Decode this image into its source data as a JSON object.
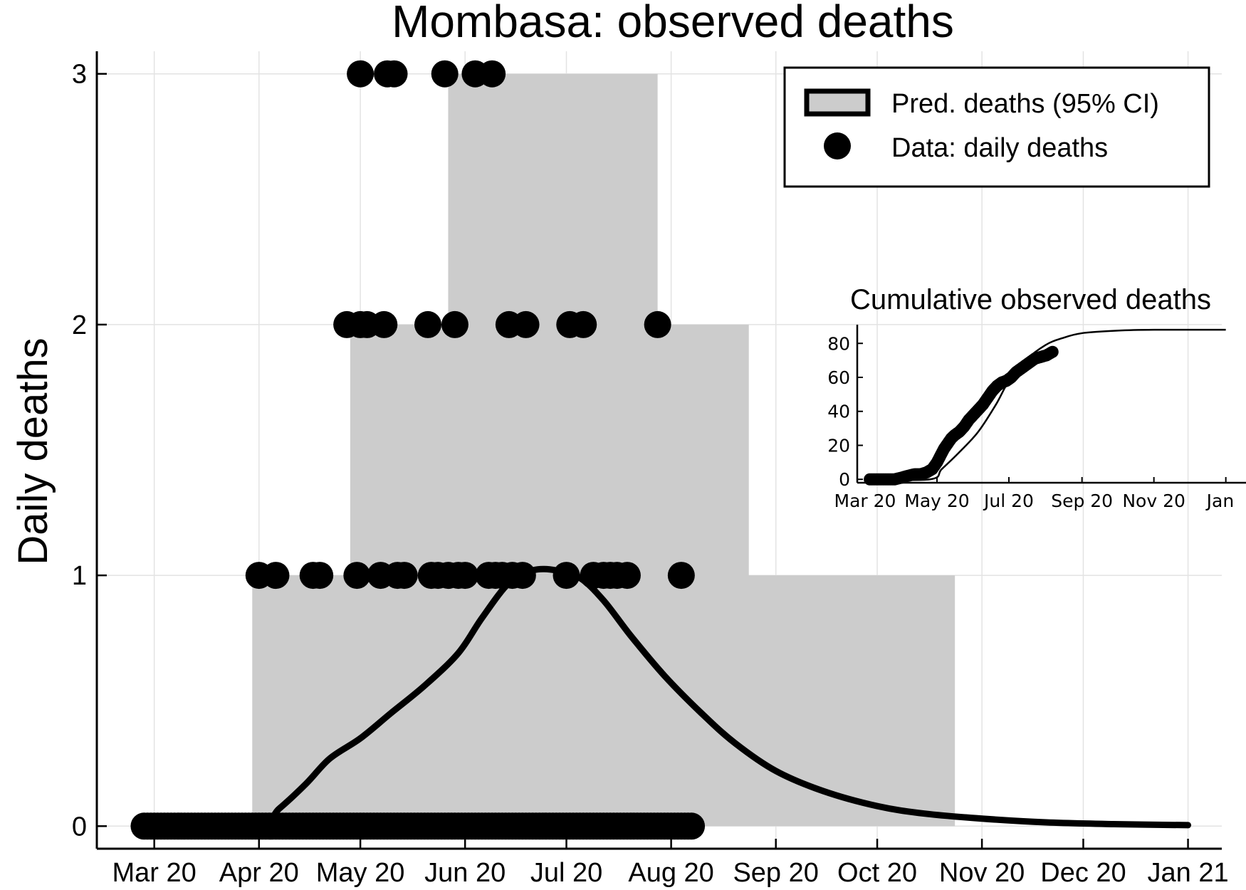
{
  "chart_data": [
    {
      "type": "area",
      "title": "Mombasa: observed deaths",
      "xlabel": "",
      "ylabel": "Daily deaths",
      "x_ticks": [
        "Mar 20",
        "Apr 20",
        "May 20",
        "Jun 20",
        "Jul 20",
        "Aug 20",
        "Sep 20",
        "Oct 20",
        "Nov 20",
        "Dec 20",
        "Jan 21"
      ],
      "x_tick_dates": [
        "2020-03-01",
        "2020-04-01",
        "2020-05-01",
        "2020-06-01",
        "2020-07-01",
        "2020-08-01",
        "2020-09-01",
        "2020-10-01",
        "2020-11-01",
        "2020-12-01",
        "2021-01-01"
      ],
      "y_ticks": [
        "0",
        "1",
        "2",
        "3"
      ],
      "xlim": [
        "2020-02-13",
        "2021-01-11"
      ],
      "ylim": [
        -0.09,
        3.09
      ],
      "grid": true,
      "legend": {
        "position": "top-right",
        "entries": [
          {
            "label": "Pred. deaths (95% CI)",
            "kind": "band"
          },
          {
            "label": "Data: daily deaths",
            "kind": "marker"
          }
        ]
      },
      "colors": {
        "band": "#cccccc",
        "line": "#000000",
        "markers": "#000000"
      },
      "series": [
        {
          "name": "Pred. deaths (95% CI)",
          "kind": "band_step",
          "x": [
            "2020-03-30",
            "2020-04-28",
            "2020-05-27",
            "2020-07-28",
            "2020-08-24",
            "2020-10-24"
          ],
          "upper": [
            1,
            2,
            3,
            2,
            1,
            0
          ],
          "lower": [
            0,
            0,
            0,
            0,
            0,
            0
          ]
        },
        {
          "name": "median prediction",
          "kind": "line",
          "x": [
            "2020-03-01",
            "2020-03-31",
            "2020-04-07",
            "2020-04-15",
            "2020-04-22",
            "2020-05-01",
            "2020-05-10",
            "2020-05-20",
            "2020-05-30",
            "2020-06-06",
            "2020-06-14",
            "2020-06-21",
            "2020-06-28",
            "2020-07-05",
            "2020-07-12",
            "2020-07-20",
            "2020-07-30",
            "2020-08-10",
            "2020-08-20",
            "2020-09-01",
            "2020-09-15",
            "2020-10-01",
            "2020-10-15",
            "2020-11-01",
            "2020-11-20",
            "2020-12-10",
            "2021-01-01"
          ],
          "y": [
            0,
            0,
            0.07,
            0.17,
            0.27,
            0.35,
            0.45,
            0.56,
            0.69,
            0.83,
            0.97,
            1.02,
            1.02,
            0.99,
            0.9,
            0.76,
            0.6,
            0.45,
            0.33,
            0.22,
            0.14,
            0.08,
            0.05,
            0.03,
            0.015,
            0.008,
            0.004
          ]
        },
        {
          "name": "Data: daily deaths",
          "kind": "scatter",
          "points": [
            [
              "2020-04-01",
              1
            ],
            [
              "2020-04-06",
              1
            ],
            [
              "2020-04-17",
              1
            ],
            [
              "2020-04-19",
              1
            ],
            [
              "2020-04-30",
              1
            ],
            [
              "2020-05-07",
              1
            ],
            [
              "2020-05-12",
              1
            ],
            [
              "2020-05-14",
              1
            ],
            [
              "2020-05-22",
              1
            ],
            [
              "2020-05-24",
              1
            ],
            [
              "2020-05-27",
              1
            ],
            [
              "2020-05-30",
              1
            ],
            [
              "2020-06-01",
              1
            ],
            [
              "2020-06-08",
              1
            ],
            [
              "2020-06-10",
              1
            ],
            [
              "2020-06-12",
              1
            ],
            [
              "2020-06-15",
              1
            ],
            [
              "2020-06-18",
              1
            ],
            [
              "2020-07-01",
              1
            ],
            [
              "2020-07-09",
              1
            ],
            [
              "2020-07-12",
              1
            ],
            [
              "2020-07-14",
              1
            ],
            [
              "2020-07-16",
              1
            ],
            [
              "2020-07-19",
              1
            ],
            [
              "2020-08-04",
              1
            ],
            [
              "2020-04-27",
              2
            ],
            [
              "2020-05-01",
              2
            ],
            [
              "2020-05-03",
              2
            ],
            [
              "2020-05-08",
              2
            ],
            [
              "2020-05-21",
              2
            ],
            [
              "2020-05-29",
              2
            ],
            [
              "2020-06-14",
              2
            ],
            [
              "2020-06-19",
              2
            ],
            [
              "2020-07-02",
              2
            ],
            [
              "2020-07-06",
              2
            ],
            [
              "2020-07-28",
              2
            ],
            [
              "2020-05-01",
              3
            ],
            [
              "2020-05-09",
              3
            ],
            [
              "2020-05-11",
              3
            ],
            [
              "2020-05-26",
              3
            ],
            [
              "2020-06-04",
              3
            ],
            [
              "2020-06-09",
              3
            ]
          ],
          "zeros_from": "2020-02-27",
          "zeros_to": "2020-08-07"
        }
      ]
    },
    {
      "type": "line",
      "title": "Cumulative observed deaths",
      "xlabel": "",
      "ylabel": "",
      "x_ticks": [
        "Mar 20",
        "May 20",
        "Jul 20",
        "Sep 20",
        "Nov 20",
        "Jan"
      ],
      "x_tick_dates": [
        "2020-03-01",
        "2020-05-01",
        "2020-07-01",
        "2020-09-01",
        "2020-11-01",
        "2021-01-01"
      ],
      "y_ticks": [
        "0",
        "20",
        "40",
        "60",
        "80"
      ],
      "ylim": [
        -2,
        91
      ],
      "grid": false,
      "series": [
        {
          "name": "predicted cumulative deaths",
          "kind": "line",
          "x": [
            "2020-03-01",
            "2020-04-25",
            "2020-05-05",
            "2020-05-20",
            "2020-06-05",
            "2020-06-20",
            "2020-07-01",
            "2020-07-15",
            "2020-08-01",
            "2020-08-15",
            "2020-09-01",
            "2020-10-01",
            "2020-11-01",
            "2021-01-01"
          ],
          "y": [
            0,
            0,
            6,
            16,
            28,
            44,
            58,
            70,
            79,
            83,
            86,
            87.5,
            88,
            88
          ]
        },
        {
          "name": "observed cumulative deaths",
          "kind": "scatter",
          "x": [
            "2020-03-05",
            "2020-03-12",
            "2020-03-19",
            "2020-03-26",
            "2020-04-01",
            "2020-04-06",
            "2020-04-12",
            "2020-04-17",
            "2020-04-22",
            "2020-04-27",
            "2020-05-01",
            "2020-05-04",
            "2020-05-07",
            "2020-05-10",
            "2020-05-13",
            "2020-05-16",
            "2020-05-20",
            "2020-05-24",
            "2020-05-28",
            "2020-06-01",
            "2020-06-05",
            "2020-06-09",
            "2020-06-13",
            "2020-06-17",
            "2020-06-21",
            "2020-06-25",
            "2020-06-29",
            "2020-07-03",
            "2020-07-07",
            "2020-07-11",
            "2020-07-15",
            "2020-07-19",
            "2020-07-23",
            "2020-07-28",
            "2020-08-02",
            "2020-08-07"
          ],
          "y": [
            0,
            0,
            0,
            0,
            1,
            2,
            3,
            3,
            4,
            6,
            10,
            14,
            18,
            21,
            24,
            26,
            28,
            31,
            35,
            38,
            41,
            44,
            48,
            52,
            55,
            57,
            58,
            60,
            63,
            65,
            67,
            69,
            71,
            72,
            73,
            75
          ]
        }
      ]
    }
  ]
}
